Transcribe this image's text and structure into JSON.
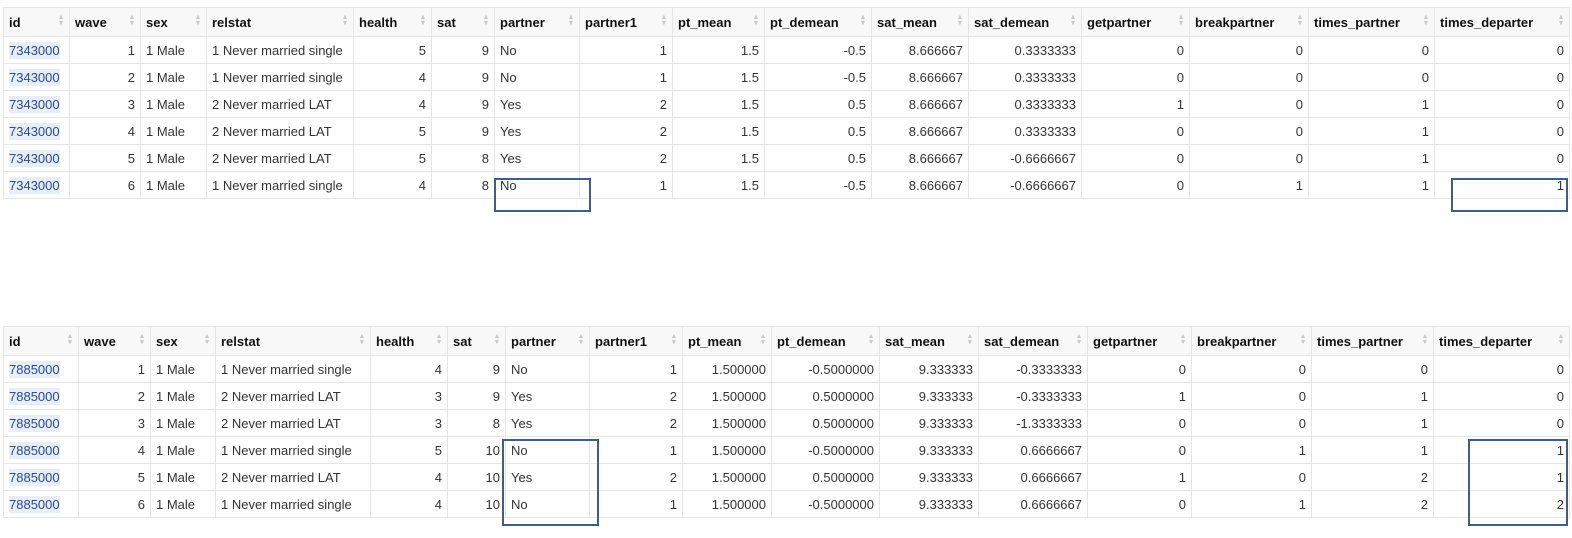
{
  "table1": {
    "columns": [
      "id",
      "wave",
      "sex",
      "relstat",
      "health",
      "sat",
      "partner",
      "partner1",
      "pt_mean",
      "pt_demean",
      "sat_mean",
      "sat_demean",
      "getpartner",
      "breakpartner",
      "times_partner",
      "times_departer"
    ],
    "rows": [
      [
        "7343000",
        "1",
        "1 Male",
        "1 Never married single",
        "5",
        "9",
        "No",
        "1",
        "1.5",
        "-0.5",
        "8.666667",
        "0.3333333",
        "0",
        "0",
        "0",
        "0"
      ],
      [
        "7343000",
        "2",
        "1 Male",
        "1 Never married single",
        "4",
        "9",
        "No",
        "1",
        "1.5",
        "-0.5",
        "8.666667",
        "0.3333333",
        "0",
        "0",
        "0",
        "0"
      ],
      [
        "7343000",
        "3",
        "1 Male",
        "2 Never married LAT",
        "4",
        "9",
        "Yes",
        "2",
        "1.5",
        "0.5",
        "8.666667",
        "0.3333333",
        "1",
        "0",
        "1",
        "0"
      ],
      [
        "7343000",
        "4",
        "1 Male",
        "2 Never married LAT",
        "5",
        "9",
        "Yes",
        "2",
        "1.5",
        "0.5",
        "8.666667",
        "0.3333333",
        "0",
        "0",
        "1",
        "0"
      ],
      [
        "7343000",
        "5",
        "1 Male",
        "2 Never married LAT",
        "5",
        "8",
        "Yes",
        "2",
        "1.5",
        "0.5",
        "8.666667",
        "-0.6666667",
        "0",
        "0",
        "1",
        "0"
      ],
      [
        "7343000",
        "6",
        "1 Male",
        "1 Never married single",
        "4",
        "8",
        "No",
        "1",
        "1.5",
        "-0.5",
        "8.666667",
        "-0.6666667",
        "0",
        "1",
        "1",
        "1"
      ]
    ]
  },
  "table2": {
    "columns": [
      "id",
      "wave",
      "sex",
      "relstat",
      "health",
      "sat",
      "partner",
      "partner1",
      "pt_mean",
      "pt_demean",
      "sat_mean",
      "sat_demean",
      "getpartner",
      "breakpartner",
      "times_partner",
      "times_departer"
    ],
    "rows": [
      [
        "7885000",
        "1",
        "1 Male",
        "1 Never married single",
        "4",
        "9",
        "No",
        "1",
        "1.500000",
        "-0.5000000",
        "9.333333",
        "-0.3333333",
        "0",
        "0",
        "0",
        "0"
      ],
      [
        "7885000",
        "2",
        "1 Male",
        "2 Never married LAT",
        "3",
        "9",
        "Yes",
        "2",
        "1.500000",
        "0.5000000",
        "9.333333",
        "-0.3333333",
        "1",
        "0",
        "1",
        "0"
      ],
      [
        "7885000",
        "3",
        "1 Male",
        "2 Never married LAT",
        "3",
        "8",
        "Yes",
        "2",
        "1.500000",
        "0.5000000",
        "9.333333",
        "-1.3333333",
        "0",
        "0",
        "1",
        "0"
      ],
      [
        "7885000",
        "4",
        "1 Male",
        "1 Never married single",
        "5",
        "10",
        "No",
        "1",
        "1.500000",
        "-0.5000000",
        "9.333333",
        "0.6666667",
        "0",
        "1",
        "1",
        "1"
      ],
      [
        "7885000",
        "5",
        "1 Male",
        "2 Never married LAT",
        "4",
        "10",
        "Yes",
        "2",
        "1.500000",
        "0.5000000",
        "9.333333",
        "0.6666667",
        "1",
        "0",
        "2",
        "1"
      ],
      [
        "7885000",
        "6",
        "1 Male",
        "1 Never married single",
        "4",
        "10",
        "No",
        "1",
        "1.500000",
        "-0.5000000",
        "9.333333",
        "0.6666667",
        "0",
        "1",
        "2",
        "2"
      ]
    ]
  },
  "sort_icon": "sort-updown-icon",
  "colors": {
    "highlight": "#3c5f83",
    "id_bg": "#e8eef8",
    "id_text": "#2a4c8b",
    "header_bg": "#f8f8f8"
  }
}
